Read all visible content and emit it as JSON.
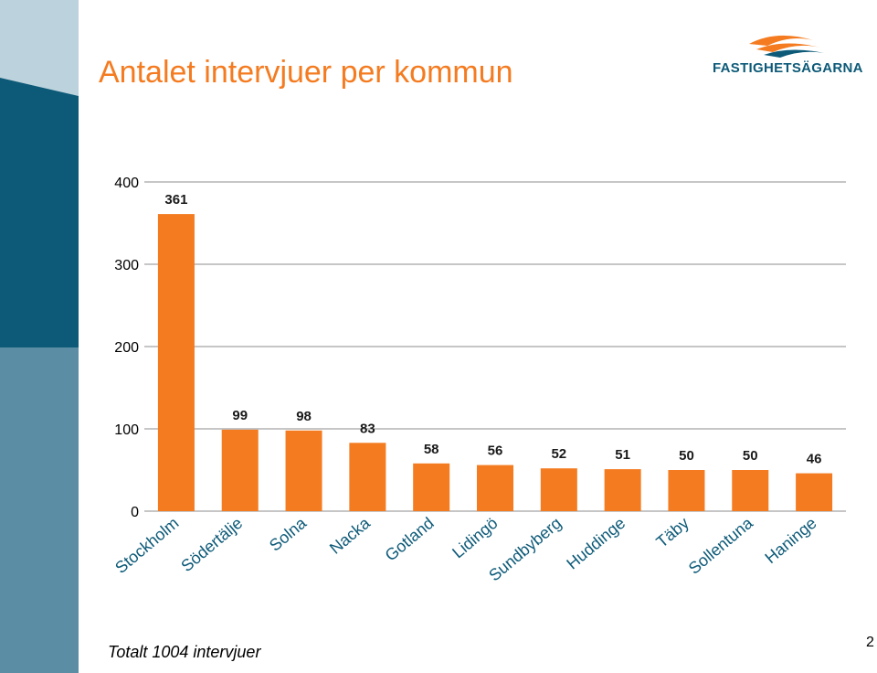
{
  "slide": {
    "title": "Antalet intervjuer per kommun",
    "logo_text": "FASTIGHETSÄGARNA",
    "footer": "Totalt 1004 intervjuer",
    "page_number": "2"
  },
  "colors": {
    "bar": "#f47b20",
    "title": "#f47b20",
    "sidebar_top": "#0d5a78",
    "sidebar_light": "#bcd2dc",
    "sidebar_mid": "#5b8ea4",
    "logo": "#0d5a78"
  },
  "chart_data": {
    "type": "bar",
    "categories": [
      "Stockholm",
      "Södertälje",
      "Solna",
      "Nacka",
      "Gotland",
      "Lidingö",
      "Sundbyberg",
      "Huddinge",
      "Täby",
      "Sollentuna",
      "Haninge"
    ],
    "values": [
      361,
      99,
      98,
      83,
      58,
      56,
      52,
      51,
      50,
      50,
      46
    ],
    "ylim": [
      0,
      400
    ],
    "yticks": [
      0,
      100,
      200,
      300,
      400
    ],
    "grid": true
  }
}
